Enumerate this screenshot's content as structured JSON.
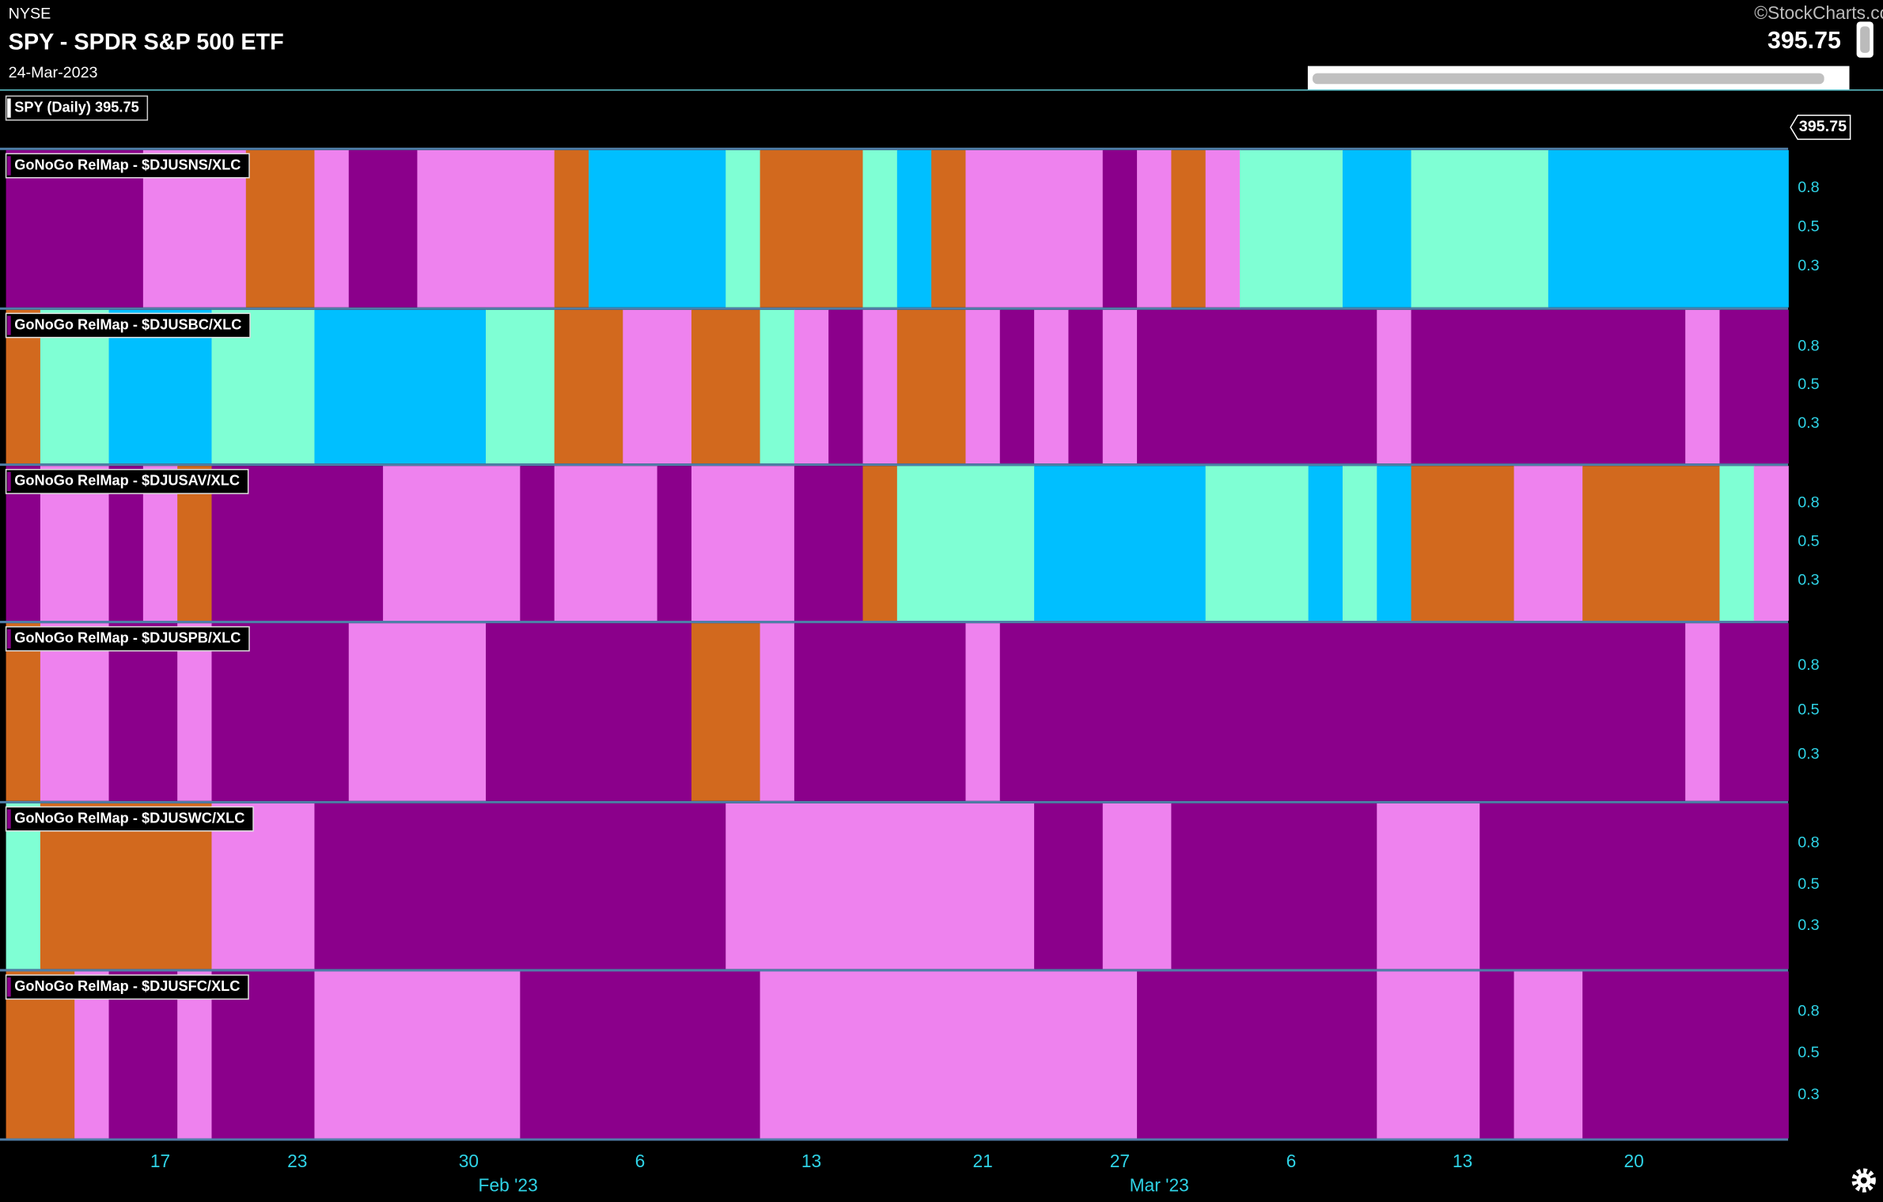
{
  "header": {
    "exchange": "NYSE",
    "title": "SPY - SPDR S&P 500 ETF",
    "date": "24-Mar-2023",
    "price": "395.75",
    "source": "©StockCharts.com"
  },
  "chart_data": {
    "type": "heatmap",
    "legend": "SPY (Daily) 395.75",
    "price_tag": "395.75",
    "palette": {
      "P": "#8b008b",
      "K": "#ee82ee",
      "O": "#d2691e",
      "B": "#00bfff",
      "A": "#7fffd4"
    },
    "xlim": [
      0,
      52
    ],
    "xticks": [
      {
        "value": 4,
        "label": "17"
      },
      {
        "value": 8,
        "label": "23"
      },
      {
        "value": 13,
        "label": "30"
      },
      {
        "value": 18,
        "label": "6"
      },
      {
        "value": 23,
        "label": "13"
      },
      {
        "value": 28,
        "label": "21"
      },
      {
        "value": 32,
        "label": "27"
      },
      {
        "value": 37,
        "label": "6"
      },
      {
        "value": 42,
        "label": "13"
      },
      {
        "value": 47,
        "label": "20"
      }
    ],
    "month_labels": [
      {
        "value": 15,
        "label": "Feb '23"
      },
      {
        "value": 34,
        "label": "Mar '23"
      }
    ],
    "panels": [
      {
        "label": "GoNoGo RelMap - $DJUSNS/XLC",
        "yticks": [
          0.8,
          0.5,
          0.3
        ],
        "runs": [
          [
            "P",
            4
          ],
          [
            "K",
            3
          ],
          [
            "O",
            2
          ],
          [
            "K",
            1
          ],
          [
            "P",
            2
          ],
          [
            "K",
            4
          ],
          [
            "O",
            1
          ],
          [
            "B",
            4
          ],
          [
            "A",
            1
          ],
          [
            "O",
            3
          ],
          [
            "A",
            1
          ],
          [
            "B",
            1
          ],
          [
            "O",
            1
          ],
          [
            "K",
            4
          ],
          [
            "P",
            1
          ],
          [
            "K",
            1
          ],
          [
            "O",
            1
          ],
          [
            "K",
            1
          ],
          [
            "A",
            3
          ],
          [
            "B",
            2
          ],
          [
            "A",
            4
          ],
          [
            "B",
            7
          ]
        ]
      },
      {
        "label": "GoNoGo RelMap - $DJUSBC/XLC",
        "yticks": [
          0.8,
          0.5,
          0.3
        ],
        "runs": [
          [
            "O",
            1
          ],
          [
            "A",
            2
          ],
          [
            "B",
            3
          ],
          [
            "A",
            3
          ],
          [
            "B",
            5
          ],
          [
            "A",
            2
          ],
          [
            "O",
            2
          ],
          [
            "K",
            2
          ],
          [
            "O",
            2
          ],
          [
            "A",
            1
          ],
          [
            "K",
            1
          ],
          [
            "P",
            1
          ],
          [
            "K",
            1
          ],
          [
            "O",
            2
          ],
          [
            "K",
            1
          ],
          [
            "P",
            1
          ],
          [
            "K",
            1
          ],
          [
            "P",
            1
          ],
          [
            "K",
            1
          ],
          [
            "P",
            7
          ],
          [
            "K",
            1
          ],
          [
            "P",
            8
          ],
          [
            "K",
            1
          ],
          [
            "P",
            2
          ]
        ]
      },
      {
        "label": "GoNoGo RelMap - $DJUSAV/XLC",
        "yticks": [
          0.8,
          0.5,
          0.3
        ],
        "runs": [
          [
            "P",
            1
          ],
          [
            "K",
            2
          ],
          [
            "P",
            1
          ],
          [
            "K",
            1
          ],
          [
            "O",
            1
          ],
          [
            "P",
            5
          ],
          [
            "K",
            4
          ],
          [
            "P",
            1
          ],
          [
            "K",
            3
          ],
          [
            "P",
            1
          ],
          [
            "K",
            3
          ],
          [
            "P",
            2
          ],
          [
            "O",
            1
          ],
          [
            "A",
            4
          ],
          [
            "B",
            5
          ],
          [
            "A",
            3
          ],
          [
            "B",
            1
          ],
          [
            "A",
            1
          ],
          [
            "B",
            1
          ],
          [
            "O",
            3
          ],
          [
            "K",
            2
          ],
          [
            "O",
            4
          ],
          [
            "A",
            1
          ],
          [
            "K",
            1
          ]
        ]
      },
      {
        "label": "GoNoGo RelMap - $DJUSPB/XLC",
        "yticks": [
          0.8,
          0.5,
          0.3
        ],
        "runs": [
          [
            "O",
            1
          ],
          [
            "K",
            2
          ],
          [
            "P",
            2
          ],
          [
            "K",
            1
          ],
          [
            "P",
            4
          ],
          [
            "K",
            4
          ],
          [
            "P",
            6
          ],
          [
            "O",
            2
          ],
          [
            "K",
            1
          ],
          [
            "P",
            5
          ],
          [
            "K",
            1
          ],
          [
            "P",
            20
          ],
          [
            "K",
            1
          ],
          [
            "P",
            2
          ]
        ]
      },
      {
        "label": "GoNoGo RelMap - $DJUSWC/XLC",
        "yticks": [
          0.8,
          0.5,
          0.3
        ],
        "runs": [
          [
            "A",
            1
          ],
          [
            "O",
            5
          ],
          [
            "K",
            3
          ],
          [
            "P",
            12
          ],
          [
            "K",
            9
          ],
          [
            "P",
            2
          ],
          [
            "K",
            2
          ],
          [
            "P",
            6
          ],
          [
            "K",
            3
          ],
          [
            "P",
            9
          ]
        ]
      },
      {
        "label": "GoNoGo RelMap - $DJUSFC/XLC",
        "yticks": [
          0.8,
          0.5,
          0.3
        ],
        "runs": [
          [
            "O",
            2
          ],
          [
            "K",
            1
          ],
          [
            "P",
            2
          ],
          [
            "K",
            1
          ],
          [
            "P",
            3
          ],
          [
            "K",
            6
          ],
          [
            "P",
            7
          ],
          [
            "K",
            11
          ],
          [
            "P",
            7
          ],
          [
            "K",
            3
          ],
          [
            "P",
            1
          ],
          [
            "K",
            2
          ],
          [
            "P",
            6
          ]
        ]
      }
    ]
  }
}
